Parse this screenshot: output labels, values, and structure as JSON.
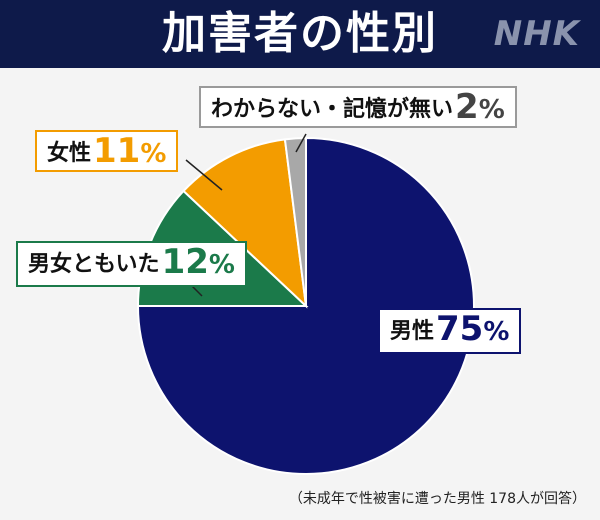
{
  "header": {
    "title": "加害者の性別",
    "logo": "NHK"
  },
  "chart_data": {
    "type": "pie",
    "slices": [
      {
        "label": "男性",
        "value": 75,
        "color": "#0d136e"
      },
      {
        "label": "男女ともいた",
        "value": 12,
        "color": "#1b7a4a"
      },
      {
        "label": "女性",
        "value": 11,
        "color": "#f39c00"
      },
      {
        "label": "わからない・記憶が無い",
        "value": 2,
        "color": "#a8a8a8"
      }
    ],
    "unit": "%"
  },
  "labels": {
    "none": {
      "text": "わからない・記憶が無い",
      "value": "2",
      "unit": "%"
    },
    "female": {
      "text": "女性",
      "value": "11",
      "unit": "%"
    },
    "both": {
      "text": "男女ともいた",
      "value": "12",
      "unit": "%"
    },
    "male": {
      "text": "男性",
      "value": "75",
      "unit": "%"
    }
  },
  "footnote": "（未成年で性被害に遭った男性 178人が回答）"
}
